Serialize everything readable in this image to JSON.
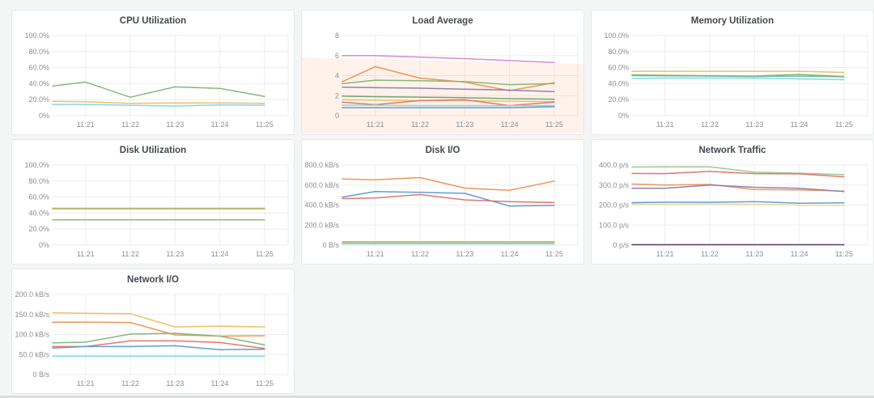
{
  "page": {
    "grid_color": "#ededef",
    "panel_background": "#ffffff",
    "panel_border": "#e6e7e9",
    "page_background": "#f4f5f5"
  },
  "chart_data": [
    {
      "type": "line",
      "title": "CPU Utilization",
      "ylim": [
        0,
        100
      ],
      "y_ticks": [
        "0%",
        "20.0%",
        "40.0%",
        "60.0%",
        "80.0%",
        "100.0%"
      ],
      "x_ticks": [
        "11:21",
        "11:22",
        "11:23",
        "11:24",
        "11:25"
      ],
      "grid": true,
      "legend": "none",
      "series": [
        {
          "name": "green-line",
          "color": "#86b97a",
          "values": [
            37,
            42,
            23,
            36,
            34,
            24
          ]
        },
        {
          "name": "yellow-line",
          "color": "#ecc164",
          "values": [
            18,
            17.5,
            15.5,
            16,
            16,
            15.5
          ]
        },
        {
          "name": "cyan-line",
          "color": "#82d8e6",
          "values": [
            14,
            14,
            13,
            12,
            13.5,
            13
          ]
        }
      ]
    },
    {
      "type": "line",
      "title": "Load Average",
      "ylim": [
        0,
        8
      ],
      "y_ticks": [
        "0",
        "2",
        "4",
        "6",
        "8"
      ],
      "x_ticks": [
        "11:21",
        "11:22",
        "11:23",
        "11:24",
        "11:25"
      ],
      "grid": true,
      "legend": "none",
      "annotation_region": {
        "fill": "#f59a5c",
        "opacity": 0.13,
        "top_value_left": 5.8,
        "top_value_right": 5.15,
        "extends_to": "panel-bottom"
      },
      "series": [
        {
          "name": "magenta-line",
          "color": "#d98bd0",
          "values": [
            6.0,
            6.0,
            5.85,
            5.7,
            5.5,
            5.3
          ]
        },
        {
          "name": "orange-line",
          "color": "#f19459",
          "values": [
            3.4,
            4.9,
            3.75,
            3.35,
            2.5,
            3.3
          ]
        },
        {
          "name": "green-line",
          "color": "#86b97a",
          "values": [
            3.2,
            3.55,
            3.5,
            3.4,
            3.1,
            3.2
          ]
        },
        {
          "name": "slate-purple-line",
          "color": "#8f83b3",
          "values": [
            2.85,
            2.8,
            2.75,
            2.65,
            2.55,
            2.4
          ]
        },
        {
          "name": "dark-green-line",
          "color": "#77a376",
          "values": [
            1.95,
            1.9,
            1.85,
            1.8,
            1.7,
            1.65
          ]
        },
        {
          "name": "yellow-line",
          "color": "#ecc164",
          "values": [
            1.6,
            1.55,
            1.5,
            1.5,
            1.45,
            1.4
          ]
        },
        {
          "name": "red-line",
          "color": "#e4766d",
          "values": [
            1.35,
            1.1,
            1.5,
            1.6,
            1.0,
            1.35
          ]
        },
        {
          "name": "cyan-line",
          "color": "#82d8e6",
          "values": [
            1.05,
            1.05,
            1.0,
            1.0,
            1.0,
            1.0
          ]
        },
        {
          "name": "blue-line",
          "color": "#5f9fd0",
          "values": [
            0.8,
            0.8,
            0.8,
            0.8,
            0.8,
            0.9
          ]
        }
      ]
    },
    {
      "type": "line",
      "title": "Memory Utilization",
      "ylim": [
        0,
        100
      ],
      "y_ticks": [
        "0%",
        "20.0%",
        "40.0%",
        "60.0%",
        "80.0%",
        "100.0%"
      ],
      "x_ticks": [
        "11:21",
        "11:22",
        "11:23",
        "11:24",
        "11:25"
      ],
      "grid": true,
      "legend": "none",
      "series": [
        {
          "name": "amber-line",
          "color": "#ecc164",
          "values": [
            55.5,
            55.5,
            55.5,
            55.5,
            55.5,
            54
          ]
        },
        {
          "name": "green-line",
          "color": "#86b97a",
          "values": [
            51,
            50.5,
            50,
            49.5,
            51.5,
            49
          ]
        },
        {
          "name": "teal-green-line",
          "color": "#74b998",
          "values": [
            50,
            49.8,
            49.5,
            49,
            49.5,
            48.5
          ]
        },
        {
          "name": "cyan-line",
          "color": "#82d8e6",
          "values": [
            46.5,
            47,
            47,
            47,
            46,
            45
          ]
        }
      ]
    },
    {
      "type": "line",
      "title": "Disk Utilization",
      "ylim": [
        0,
        100
      ],
      "y_ticks": [
        "0%",
        "20.0%",
        "40.0%",
        "60.0%",
        "80.0%",
        "100.0%"
      ],
      "x_ticks": [
        "11:21",
        "11:22",
        "11:23",
        "11:24",
        "11:25"
      ],
      "grid": true,
      "legend": "none",
      "series": [
        {
          "name": "green-line",
          "color": "#86b97a",
          "values": [
            46,
            46,
            46,
            46,
            46,
            46
          ]
        },
        {
          "name": "yellow-line",
          "color": "#ecc164",
          "values": [
            45,
            45,
            45,
            45,
            45,
            45
          ]
        },
        {
          "name": "green-line-2",
          "color": "#8bbd7e",
          "values": [
            31.5,
            31.5,
            31.5,
            31.5,
            31.5,
            31.5
          ]
        }
      ]
    },
    {
      "type": "line",
      "title": "Disk I/O",
      "ylim": [
        0,
        800
      ],
      "y_ticks": [
        "0 B/s",
        "200.0 kB/s",
        "400.0 kB/s",
        "600.0 kB/s",
        "800.0 kB/s"
      ],
      "x_ticks": [
        "11:21",
        "11:22",
        "11:23",
        "11:24",
        "11:25"
      ],
      "grid": true,
      "legend": "none",
      "series": [
        {
          "name": "orange-line",
          "color": "#f19459",
          "values": [
            660,
            652,
            675,
            570,
            548,
            640
          ]
        },
        {
          "name": "blue-line",
          "color": "#5f9fd0",
          "values": [
            480,
            535,
            527,
            517,
            390,
            397
          ]
        },
        {
          "name": "red-line",
          "color": "#e4766d",
          "values": [
            465,
            470,
            505,
            452,
            435,
            425
          ]
        },
        {
          "name": "green-line",
          "color": "#86b97a",
          "values": [
            32,
            32,
            32,
            32,
            32,
            32
          ]
        },
        {
          "name": "yellow-line",
          "color": "#ecc164",
          "values": [
            20,
            20,
            20,
            20,
            20,
            20
          ]
        },
        {
          "name": "cyan-line",
          "color": "#82d8e6",
          "values": [
            12,
            12,
            12,
            12,
            12,
            12
          ]
        }
      ]
    },
    {
      "type": "line",
      "title": "Network Traffic",
      "ylim": [
        0,
        400
      ],
      "y_ticks": [
        "0 p/s",
        "100.0 p/s",
        "200.0 p/s",
        "300.0 p/s",
        "400.0 p/s"
      ],
      "x_ticks": [
        "11:21",
        "11:22",
        "11:23",
        "11:24",
        "11:25"
      ],
      "grid": true,
      "legend": "none",
      "series": [
        {
          "name": "light-green-line",
          "color": "#9fc98f",
          "values": [
            390,
            391,
            391,
            364,
            359,
            352
          ]
        },
        {
          "name": "red-line",
          "color": "#e4766d",
          "values": [
            358,
            357,
            368,
            357,
            356,
            341
          ]
        },
        {
          "name": "orange-line",
          "color": "#f19459",
          "values": [
            305,
            300,
            303,
            278,
            276,
            270
          ]
        },
        {
          "name": "slate-purple-line",
          "color": "#8f83b3",
          "values": [
            284,
            284,
            300,
            289,
            284,
            268
          ]
        },
        {
          "name": "blue-line",
          "color": "#5f9fd0",
          "values": [
            212,
            214,
            214,
            217,
            209,
            211
          ]
        },
        {
          "name": "pale-yellow-line",
          "color": "#f2d793",
          "values": [
            205,
            204,
            206,
            204,
            199,
            199
          ]
        },
        {
          "name": "dark-purple-line",
          "color": "#5d3a66",
          "values": [
            2,
            2,
            2,
            2,
            2,
            2
          ]
        }
      ]
    },
    {
      "type": "line",
      "title": "Network I/O",
      "ylim": [
        0,
        200
      ],
      "y_ticks": [
        "0 B/s",
        "50.0 kB/s",
        "100.0 kB/s",
        "150.0 kB/s",
        "200.0 kB/s"
      ],
      "x_ticks": [
        "11:21",
        "11:22",
        "11:23",
        "11:24",
        "11:25"
      ],
      "grid": true,
      "legend": "none",
      "series": [
        {
          "name": "yellow-line",
          "color": "#ecc164",
          "values": [
            154,
            153,
            152,
            119,
            121,
            119
          ]
        },
        {
          "name": "orange-line",
          "color": "#f19459",
          "values": [
            131,
            131,
            130,
            99,
            96,
            97
          ]
        },
        {
          "name": "green-line",
          "color": "#86b97a",
          "values": [
            79,
            81,
            101,
            103,
            96,
            74
          ]
        },
        {
          "name": "red-line",
          "color": "#e4766d",
          "values": [
            70,
            70,
            84,
            84,
            80,
            65
          ]
        },
        {
          "name": "blue-line",
          "color": "#5f9fd0",
          "values": [
            66,
            70,
            70,
            72,
            62,
            63
          ]
        },
        {
          "name": "cyan-line",
          "color": "#82d8e6",
          "values": [
            46,
            46,
            46,
            46,
            46,
            46
          ]
        }
      ]
    }
  ]
}
